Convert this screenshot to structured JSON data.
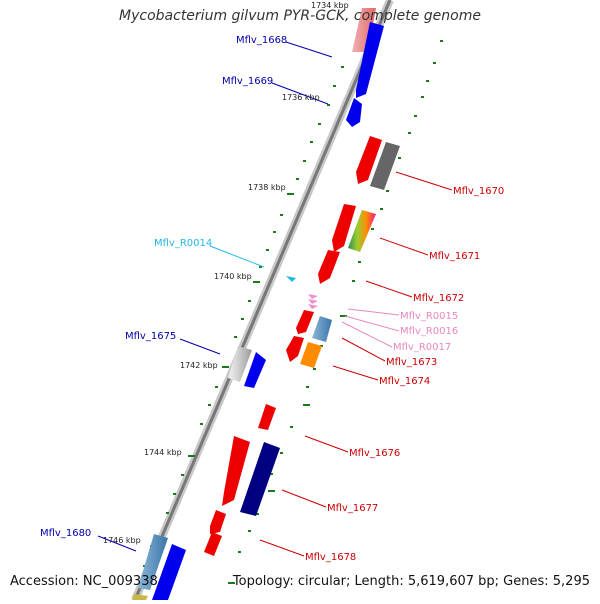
{
  "title": "Mycobacterium gilvum PYR-GCK, complete genome",
  "footer": {
    "accession": "Accession: NC_009338",
    "summary": "Topology: circular; Length: 5,619,607 bp; Genes: 5,295"
  },
  "colors": {
    "backbone_light": "#c8c8c8",
    "backbone_dark": "#777777",
    "tick": "#1a7a1a",
    "label_dark_blue": "#0000aa",
    "label_red": "#cc0000",
    "label_cyan": "#22b8e6",
    "label_pink": "#e987c0"
  },
  "scale_labels": [
    {
      "name": "scale-1734",
      "text": "1734 kbp"
    },
    {
      "name": "scale-1736",
      "text": "1736 kbp"
    },
    {
      "name": "scale-1738",
      "text": "1738 kbp"
    },
    {
      "name": "scale-1740",
      "text": "1740 kbp"
    },
    {
      "name": "scale-1742",
      "text": "1742 kbp"
    },
    {
      "name": "scale-1744",
      "text": "1744 kbp"
    },
    {
      "name": "scale-1746",
      "text": "1746 kbp"
    }
  ],
  "gene_labels": [
    {
      "name": "label-mflv-1668",
      "text": "Mflv_1668",
      "color": "#0000aa"
    },
    {
      "name": "label-mflv-1669",
      "text": "Mflv_1669",
      "color": "#0000aa"
    },
    {
      "name": "label-mflv-1670",
      "text": "Mflv_1670",
      "color": "#cc0000"
    },
    {
      "name": "label-mflv-1671",
      "text": "Mflv_1671",
      "color": "#cc0000"
    },
    {
      "name": "label-mflv-r0014",
      "text": "Mflv_R0014",
      "color": "#22b8e6"
    },
    {
      "name": "label-mflv-1672",
      "text": "Mflv_1672",
      "color": "#cc0000"
    },
    {
      "name": "label-mflv-r0015",
      "text": "Mflv_R0015",
      "color": "#e987c0"
    },
    {
      "name": "label-mflv-r0016",
      "text": "Mflv_R0016",
      "color": "#e987c0"
    },
    {
      "name": "label-mflv-r0017",
      "text": "Mflv_R0017",
      "color": "#e987c0"
    },
    {
      "name": "label-mflv-1675",
      "text": "Mflv_1675",
      "color": "#0000aa"
    },
    {
      "name": "label-mflv-1673",
      "text": "Mflv_1673",
      "color": "#cc0000"
    },
    {
      "name": "label-mflv-1674",
      "text": "Mflv_1674",
      "color": "#cc0000"
    },
    {
      "name": "label-mflv-1676",
      "text": "Mflv_1676",
      "color": "#cc0000"
    },
    {
      "name": "label-mflv-1677",
      "text": "Mflv_1677",
      "color": "#cc0000"
    },
    {
      "name": "label-mflv-1680",
      "text": "Mflv_1680",
      "color": "#0000aa"
    },
    {
      "name": "label-mflv-1678",
      "text": "Mflv_1678",
      "color": "#cc0000"
    }
  ]
}
